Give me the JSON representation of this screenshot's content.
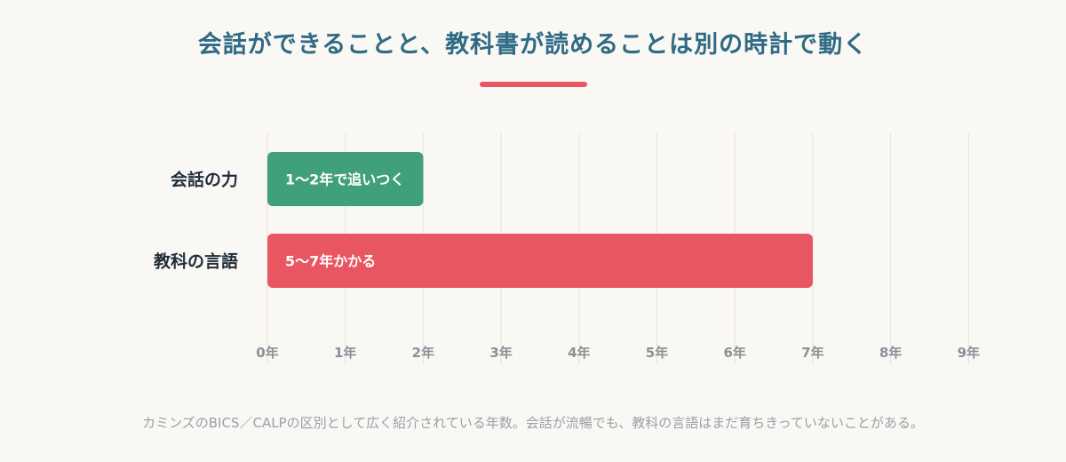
{
  "title": "会話ができることと、教科書が読めることは別の時計で動く",
  "footnote": "カミンズのBICS／CALPの区別として広く紹介されている年数。会話が流暢でも、教科の言語はまだ育ちきっていないことがある。",
  "colors": {
    "title": "#2f6b84",
    "accent": "#e85662",
    "conversation": "#41a07c",
    "academic": "#e85662",
    "grid": "#e4e1dc",
    "tick": "#8c9096",
    "category": "#1f2d3a",
    "footnote": "#9aa0a6"
  },
  "chart_data": {
    "type": "bar",
    "orientation": "horizontal",
    "categories": [
      "会話の力",
      "教科の言語"
    ],
    "values": [
      2,
      7
    ],
    "bar_labels": [
      "1〜2年で追いつく",
      "5〜7年かかる"
    ],
    "x_ticks": [
      "0年",
      "1年",
      "2年",
      "3年",
      "4年",
      "5年",
      "6年",
      "7年",
      "8年",
      "9年"
    ],
    "xlim": [
      0,
      9
    ],
    "grid": true,
    "legend": "none"
  }
}
